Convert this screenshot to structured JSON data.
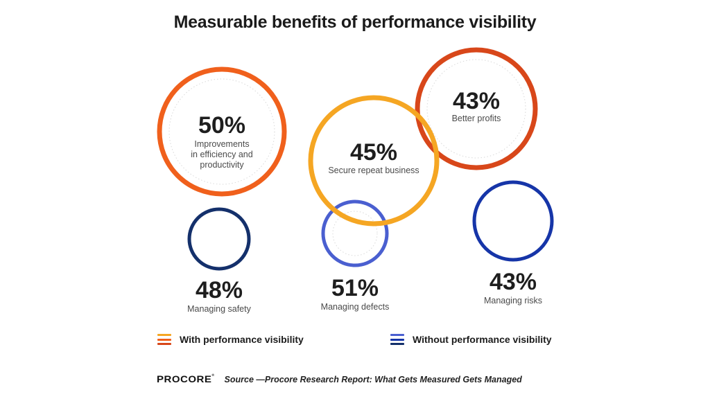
{
  "title": "Measurable benefits of performance visibility",
  "colors": {
    "with_outer": "#f0601c",
    "with_accent": "#f5a623",
    "with_dark": "#d8471a",
    "without_dark": "#14306b",
    "without_mid": "#4a5fd0",
    "without_deep": "#1635a8"
  },
  "chart_data": {
    "type": "bubble-rings",
    "title": "Measurable benefits of performance visibility",
    "series": [
      {
        "name": "With performance visibility",
        "items": [
          {
            "value": 50,
            "display": "50%",
            "label": [
              "Improvements",
              "in efficiency and",
              "productivity"
            ]
          },
          {
            "value": 45,
            "display": "45%",
            "label": [
              "Secure repeat business"
            ]
          },
          {
            "value": 43,
            "display": "43%",
            "label": [
              "Better profits"
            ]
          }
        ]
      },
      {
        "name": "Without performance visibility",
        "items": [
          {
            "value": 48,
            "display": "48%",
            "label": [
              "Managing safety"
            ]
          },
          {
            "value": 51,
            "display": "51%",
            "label": [
              "Managing defects"
            ]
          },
          {
            "value": 43,
            "display": "43%",
            "label": [
              "Managing risks"
            ]
          }
        ]
      }
    ]
  },
  "legend": {
    "with_label": "With performance visibility",
    "without_label": "Without performance visibility"
  },
  "footer": {
    "logo": "PROCORE",
    "logo_mark": "®",
    "source": "Source —Procore Research Report: What Gets Measured Gets Managed"
  },
  "icons": {
    "legend_with": "three-orange-bars-icon",
    "legend_without": "three-blue-bars-icon"
  }
}
